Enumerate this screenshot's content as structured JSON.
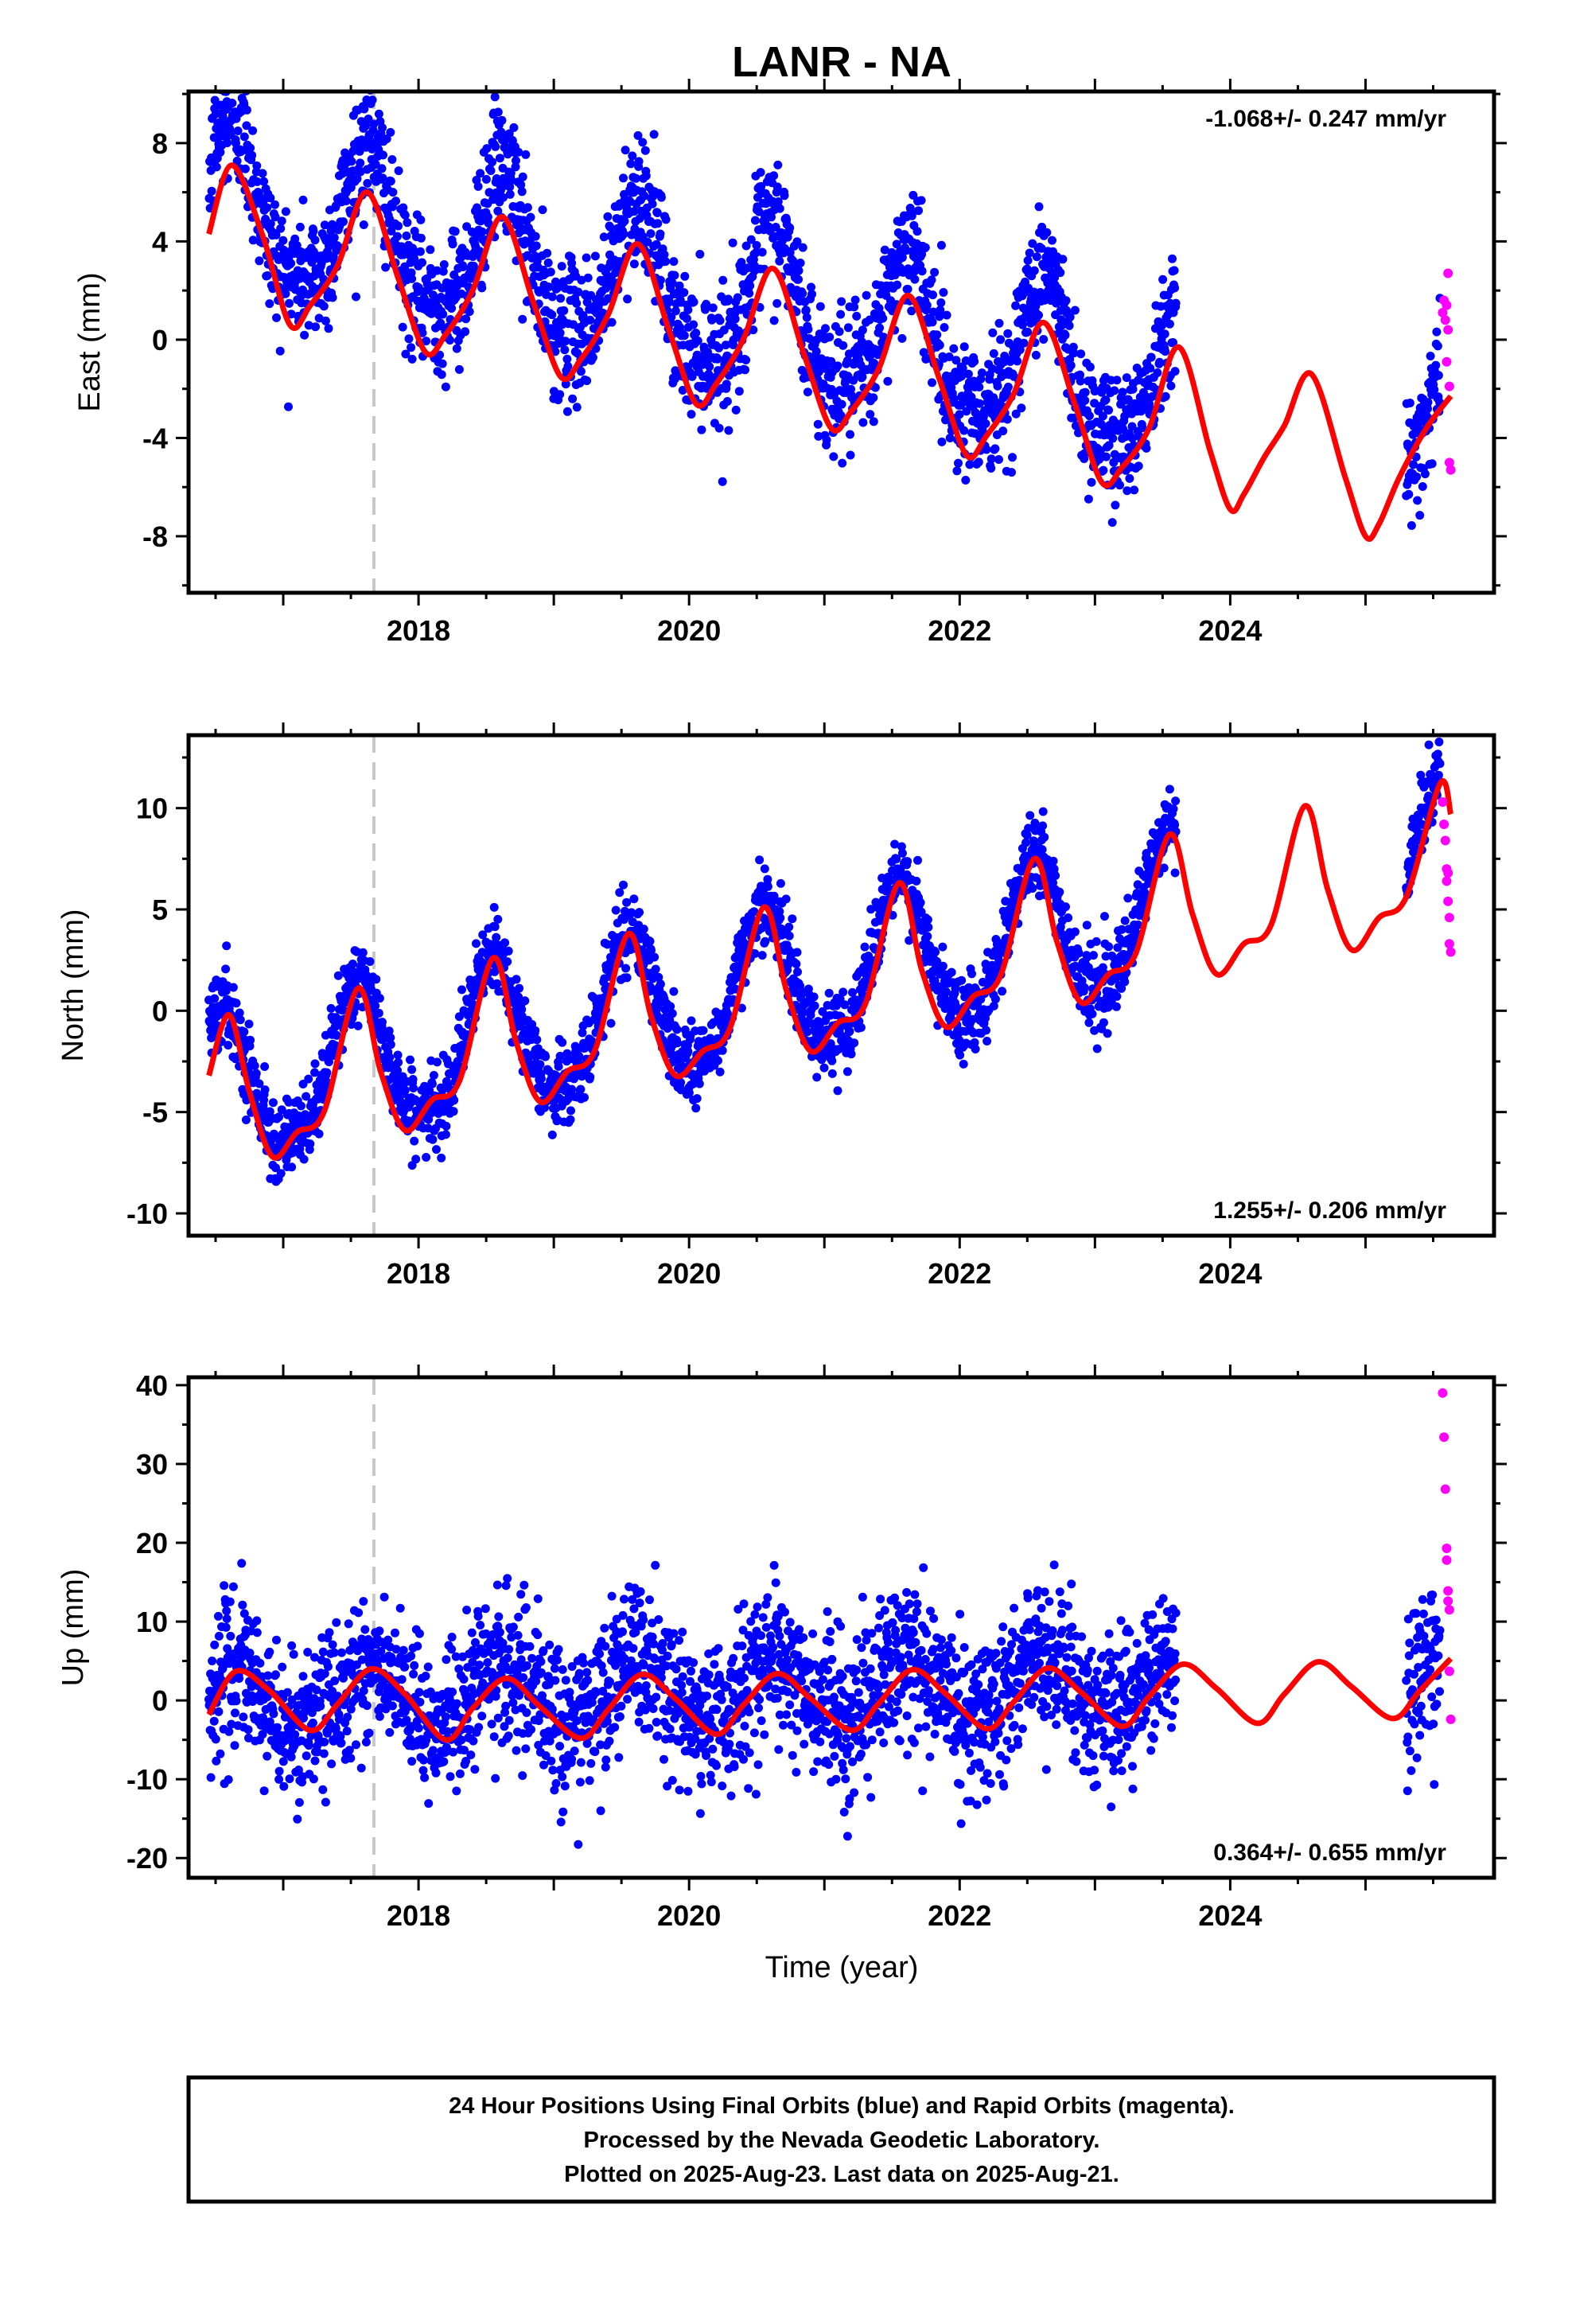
{
  "title": "LANR - NA",
  "xlabel": "Time (year)",
  "footer": {
    "line1": "24 Hour Positions Using Final Orbits (blue) and Rapid Orbits (magenta).",
    "line2": "Processed by the Nevada Geodetic Laboratory.",
    "line3": "Plotted on 2025-Aug-23. Last data on 2025-Aug-21."
  },
  "colors": {
    "final": "#0000ff",
    "rapid": "#ff00ff",
    "model": "#ff0000",
    "equipment_change": "#c8c8c8"
  },
  "chart_data": [
    {
      "type": "scatter",
      "component": "East",
      "ylabel": "East (mm)",
      "xlim": [
        2016.3,
        2025.95
      ],
      "ylim": [
        -10.3,
        10.1
      ],
      "yticks": [
        -8,
        -4,
        0,
        4,
        8
      ],
      "xticks": [
        2018,
        2020,
        2022,
        2024
      ],
      "x_minor_step": 0.5,
      "rate": "-1.068+/- 0.247 mm/yr",
      "rate_position": "top-right",
      "equipment_change_year": 2017.67,
      "final_data": {
        "start": 2016.45,
        "gap": [
          2023.6,
          2025.3
        ],
        "end": 2025.55,
        "points_per_year": 330,
        "trend": -1.068,
        "offset": 5.6,
        "annual_amp": 3.0,
        "annual_phase_year": 2016.62,
        "semiannual_amp": 0.7,
        "scatter": 1.35
      },
      "rapid_data": {
        "x": [
          2025.57,
          2025.58,
          2025.59,
          2025.6,
          2025.6,
          2025.61,
          2025.61,
          2025.62,
          2025.62,
          2025.63
        ],
        "y": [
          1.1,
          1.6,
          0.8,
          1.4,
          -0.9,
          2.7,
          0.4,
          -1.9,
          -5.0,
          -5.3
        ]
      },
      "model_curve": [
        [
          2016.45,
          4.3
        ],
        [
          2016.62,
          7.1
        ],
        [
          2016.85,
          4.2
        ],
        [
          2017.05,
          0.6
        ],
        [
          2017.2,
          1.4
        ],
        [
          2017.4,
          3.0
        ],
        [
          2017.62,
          6.0
        ],
        [
          2017.85,
          2.5
        ],
        [
          2018.05,
          -0.5
        ],
        [
          2018.2,
          0.2
        ],
        [
          2018.4,
          2.0
        ],
        [
          2018.62,
          5.0
        ],
        [
          2018.85,
          1.5
        ],
        [
          2019.05,
          -1.5
        ],
        [
          2019.2,
          -0.8
        ],
        [
          2019.4,
          1.0
        ],
        [
          2019.62,
          3.9
        ],
        [
          2019.85,
          0.4
        ],
        [
          2020.05,
          -2.6
        ],
        [
          2020.2,
          -1.8
        ],
        [
          2020.4,
          0.0
        ],
        [
          2020.62,
          2.9
        ],
        [
          2020.85,
          -0.6
        ],
        [
          2021.05,
          -3.6
        ],
        [
          2021.2,
          -2.9
        ],
        [
          2021.4,
          -1.2
        ],
        [
          2021.62,
          1.8
        ],
        [
          2021.85,
          -1.6
        ],
        [
          2022.05,
          -4.7
        ],
        [
          2022.2,
          -3.9
        ],
        [
          2022.4,
          -2.2
        ],
        [
          2022.62,
          0.7
        ],
        [
          2022.85,
          -2.6
        ],
        [
          2023.05,
          -5.8
        ],
        [
          2023.2,
          -5.2
        ],
        [
          2023.4,
          -3.6
        ],
        [
          2023.62,
          -0.3
        ],
        [
          2023.85,
          -4.5
        ],
        [
          2024.0,
          -6.9
        ],
        [
          2024.1,
          -6.3
        ],
        [
          2024.25,
          -4.8
        ],
        [
          2024.4,
          -3.5
        ],
        [
          2024.6,
          -1.4
        ],
        [
          2024.85,
          -5.6
        ],
        [
          2025.0,
          -8.0
        ],
        [
          2025.1,
          -7.5
        ],
        [
          2025.25,
          -5.6
        ],
        [
          2025.45,
          -3.6
        ],
        [
          2025.63,
          -2.3
        ]
      ]
    },
    {
      "type": "scatter",
      "component": "North",
      "ylabel": "North (mm)",
      "xlim": [
        2016.3,
        2025.95
      ],
      "ylim": [
        -11.1,
        13.6
      ],
      "yticks": [
        -10,
        -5,
        0,
        5,
        10
      ],
      "xticks": [
        2018,
        2020,
        2022,
        2024
      ],
      "x_minor_step": 0.5,
      "rate": "1.255+/- 0.206 mm/yr",
      "rate_position": "bottom-right",
      "equipment_change_year": 2017.67,
      "final_data": {
        "start": 2016.45,
        "gap": [
          2023.6,
          2025.3
        ],
        "end": 2025.55,
        "points_per_year": 330,
        "trend": 1.255,
        "offset": -4.0,
        "annual_amp": 3.6,
        "annual_phase_year": 2016.55,
        "semiannual_amp": 0.5,
        "scatter": 0.95
      },
      "rapid_data": {
        "x": [
          2025.57,
          2025.58,
          2025.59,
          2025.6,
          2025.6,
          2025.61,
          2025.61,
          2025.62,
          2025.62,
          2025.63
        ],
        "y": [
          10.3,
          9.2,
          8.4,
          7.0,
          6.4,
          6.8,
          5.4,
          4.6,
          3.3,
          2.9
        ]
      },
      "model_curve": [
        [
          2016.45,
          -3.2
        ],
        [
          2016.6,
          -0.2
        ],
        [
          2016.75,
          -4.0
        ],
        [
          2016.92,
          -7.2
        ],
        [
          2017.1,
          -6.0
        ],
        [
          2017.3,
          -5.0
        ],
        [
          2017.55,
          1.1
        ],
        [
          2017.72,
          -3.0
        ],
        [
          2017.9,
          -5.9
        ],
        [
          2018.1,
          -4.4
        ],
        [
          2018.3,
          -3.5
        ],
        [
          2018.55,
          2.6
        ],
        [
          2018.72,
          -1.5
        ],
        [
          2018.9,
          -4.5
        ],
        [
          2019.1,
          -3.0
        ],
        [
          2019.3,
          -2.0
        ],
        [
          2019.55,
          3.8
        ],
        [
          2019.72,
          -0.3
        ],
        [
          2019.9,
          -3.2
        ],
        [
          2020.1,
          -2.0
        ],
        [
          2020.3,
          -0.9
        ],
        [
          2020.55,
          5.1
        ],
        [
          2020.72,
          1.0
        ],
        [
          2020.9,
          -2.0
        ],
        [
          2021.1,
          -0.6
        ],
        [
          2021.3,
          0.3
        ],
        [
          2021.55,
          6.3
        ],
        [
          2021.72,
          2.0
        ],
        [
          2021.9,
          -0.8
        ],
        [
          2022.1,
          0.7
        ],
        [
          2022.3,
          1.7
        ],
        [
          2022.55,
          7.5
        ],
        [
          2022.72,
          3.4
        ],
        [
          2022.9,
          0.4
        ],
        [
          2023.1,
          1.8
        ],
        [
          2023.3,
          2.8
        ],
        [
          2023.55,
          8.7
        ],
        [
          2023.72,
          4.8
        ],
        [
          2023.9,
          1.8
        ],
        [
          2024.1,
          3.3
        ],
        [
          2024.3,
          4.2
        ],
        [
          2024.55,
          10.1
        ],
        [
          2024.72,
          6.0
        ],
        [
          2024.9,
          3.0
        ],
        [
          2025.1,
          4.6
        ],
        [
          2025.3,
          5.6
        ],
        [
          2025.55,
          11.2
        ],
        [
          2025.63,
          9.7
        ]
      ]
    },
    {
      "type": "scatter",
      "component": "Up",
      "ylabel": "Up (mm)",
      "xlim": [
        2016.3,
        2025.95
      ],
      "ylim": [
        -22.5,
        41
      ],
      "yticks": [
        -20,
        -10,
        0,
        10,
        20,
        30,
        40
      ],
      "xticks": [
        2018,
        2020,
        2022,
        2024
      ],
      "x_minor_step": 0.5,
      "rate": "0.364+/- 0.655 mm/yr",
      "rate_position": "bottom-right",
      "equipment_change_year": 2017.67,
      "final_data": {
        "start": 2016.45,
        "gap": [
          2023.6,
          2025.3
        ],
        "end": 2025.55,
        "points_per_year": 330,
        "trend": 0.364,
        "offset": -0.3,
        "annual_amp": 3.8,
        "annual_phase_year": 2016.62,
        "semiannual_amp": 0.4,
        "scatter": 4.6
      },
      "rapid_data": {
        "x": [
          2025.57,
          2025.58,
          2025.59,
          2025.6,
          2025.6,
          2025.61,
          2025.61,
          2025.62,
          2025.62,
          2025.63
        ],
        "y": [
          39.0,
          33.4,
          26.8,
          19.3,
          17.8,
          13.9,
          12.6,
          11.5,
          3.7,
          -2.4
        ]
      },
      "model_curve": [
        [
          2016.45,
          -1.8
        ],
        [
          2016.65,
          3.7
        ],
        [
          2016.9,
          1.2
        ],
        [
          2017.2,
          -3.8
        ],
        [
          2017.4,
          -0.5
        ],
        [
          2017.65,
          4.0
        ],
        [
          2017.9,
          0.8
        ],
        [
          2018.2,
          -5.0
        ],
        [
          2018.4,
          -1.0
        ],
        [
          2018.65,
          2.8
        ],
        [
          2018.9,
          -0.8
        ],
        [
          2019.2,
          -4.8
        ],
        [
          2019.4,
          -1.2
        ],
        [
          2019.65,
          3.3
        ],
        [
          2019.9,
          0.2
        ],
        [
          2020.2,
          -4.3
        ],
        [
          2020.4,
          -0.6
        ],
        [
          2020.65,
          3.4
        ],
        [
          2020.9,
          0.2
        ],
        [
          2021.2,
          -3.8
        ],
        [
          2021.4,
          -0.4
        ],
        [
          2021.65,
          3.9
        ],
        [
          2021.9,
          0.8
        ],
        [
          2022.2,
          -3.6
        ],
        [
          2022.4,
          -0.2
        ],
        [
          2022.65,
          4.1
        ],
        [
          2022.9,
          1.0
        ],
        [
          2023.2,
          -3.3
        ],
        [
          2023.4,
          0.5
        ],
        [
          2023.65,
          4.6
        ],
        [
          2023.9,
          1.5
        ],
        [
          2024.2,
          -2.9
        ],
        [
          2024.4,
          0.8
        ],
        [
          2024.65,
          4.9
        ],
        [
          2024.9,
          1.7
        ],
        [
          2025.2,
          -2.3
        ],
        [
          2025.4,
          1.2
        ],
        [
          2025.63,
          5.3
        ]
      ]
    }
  ]
}
